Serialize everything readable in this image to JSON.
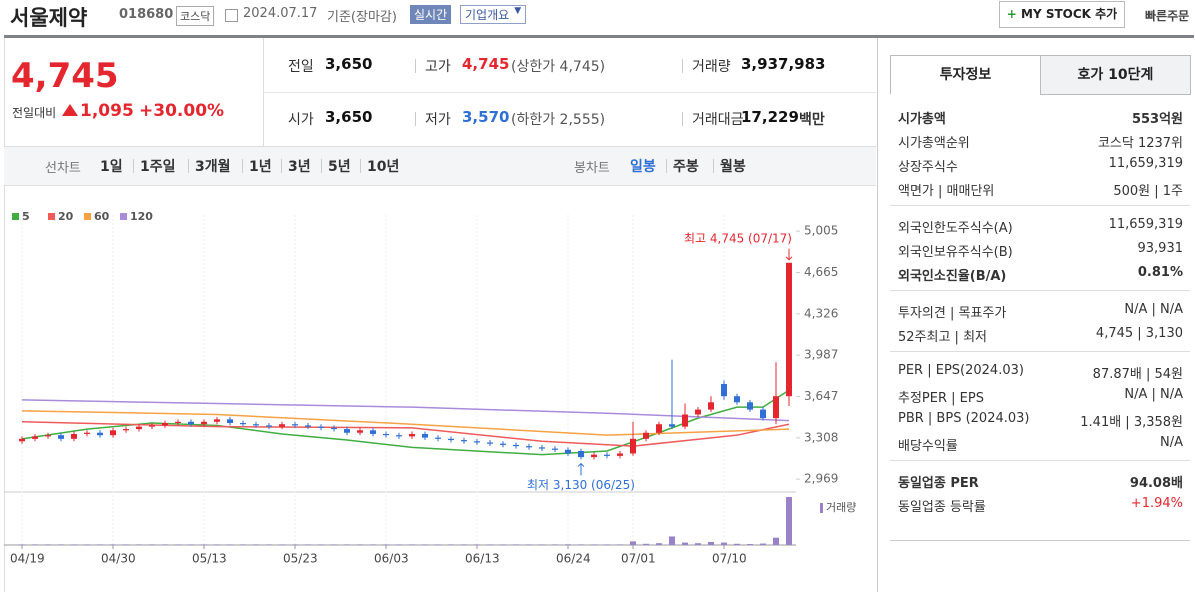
{
  "header": {
    "name": "서울제약",
    "code": "018680",
    "market": "코스닥",
    "date": "2024.07.17",
    "basis": "기준(장마감)",
    "realtime": "실시간",
    "company_info": "기업개요",
    "my_stock": "MY STOCK 추가",
    "quick_order": "빠른주문"
  },
  "price": {
    "current": "4,745",
    "change_label": "전일대비",
    "change": "1,095",
    "rate": "+30.00%"
  },
  "summary": [
    [
      {
        "label": "전일",
        "value": "3,650"
      },
      {
        "label": "고가",
        "value": "4,745",
        "note": "(상한가 4,745)"
      },
      {
        "label": "거래량",
        "value": "3,937,983"
      }
    ],
    [
      {
        "label": "시가",
        "value": "3,650"
      },
      {
        "label": "저가",
        "value": "3,570",
        "note": "(하한가 2,555)"
      },
      {
        "label": "거래대금",
        "value": "17,229",
        "unit": "백만"
      }
    ]
  ],
  "periods": {
    "line_label": "선차트",
    "line_items": [
      "1일",
      "1주일",
      "3개월",
      "1년",
      "3년",
      "5년",
      "10년"
    ],
    "candle_label": "봉차트",
    "candle_items": [
      "일봉",
      "주봉",
      "월봉"
    ]
  },
  "chart_data": {
    "type": "candlestick",
    "categories": [
      "04/19",
      null,
      null,
      null,
      null,
      null,
      null,
      "04/30",
      null,
      null,
      null,
      null,
      null,
      null,
      "05/13",
      null,
      null,
      null,
      null,
      null,
      null,
      "05/23",
      null,
      null,
      null,
      null,
      null,
      null,
      "06/03",
      null,
      null,
      null,
      null,
      null,
      null,
      "06/13",
      null,
      null,
      null,
      null,
      null,
      null,
      "06/24",
      null,
      null,
      null,
      null,
      "07/01",
      null,
      null,
      null,
      null,
      null,
      null,
      "07/10",
      null,
      null,
      null,
      null,
      null
    ],
    "open": [
      3280,
      3300,
      3320,
      3330,
      3300,
      3340,
      3350,
      3330,
      3370,
      3380,
      3400,
      3410,
      3430,
      3440,
      3420,
      3440,
      3460,
      3430,
      3420,
      3410,
      3400,
      3420,
      3410,
      3400,
      3390,
      3380,
      3350,
      3370,
      3340,
      3330,
      3320,
      3340,
      3310,
      3300,
      3290,
      3280,
      3270,
      3260,
      3250,
      3240,
      3230,
      3220,
      3210,
      3200,
      3150,
      3170,
      3160,
      3180,
      3300,
      3350,
      3420,
      3400,
      3500,
      3540,
      3750,
      3650,
      3600,
      3540,
      3470,
      3650
    ],
    "high": [
      3320,
      3340,
      3350,
      3350,
      3360,
      3370,
      3370,
      3390,
      3400,
      3420,
      3430,
      3450,
      3460,
      3460,
      3460,
      3480,
      3480,
      3450,
      3440,
      3430,
      3440,
      3440,
      3430,
      3420,
      3410,
      3400,
      3390,
      3390,
      3360,
      3350,
      3360,
      3360,
      3330,
      3320,
      3310,
      3300,
      3290,
      3280,
      3270,
      3260,
      3250,
      3240,
      3230,
      3220,
      3190,
      3190,
      3200,
      3440,
      3370,
      3440,
      3950,
      3590,
      3560,
      3650,
      3780,
      3670,
      3620,
      3560,
      3930,
      4745
    ],
    "low": [
      3260,
      3280,
      3300,
      3280,
      3280,
      3320,
      3310,
      3310,
      3350,
      3360,
      3380,
      3390,
      3410,
      3400,
      3400,
      3420,
      3410,
      3400,
      3390,
      3380,
      3380,
      3390,
      3380,
      3370,
      3360,
      3330,
      3330,
      3320,
      3310,
      3300,
      3300,
      3290,
      3280,
      3270,
      3260,
      3250,
      3240,
      3230,
      3220,
      3210,
      3200,
      3190,
      3160,
      3130,
      3130,
      3140,
      3140,
      3160,
      3280,
      3330,
      3380,
      3380,
      3480,
      3520,
      3620,
      3580,
      3520,
      3450,
      3420,
      3570
    ],
    "close": [
      3300,
      3320,
      3330,
      3300,
      3340,
      3350,
      3330,
      3370,
      3380,
      3400,
      3410,
      3430,
      3440,
      3420,
      3440,
      3460,
      3430,
      3420,
      3410,
      3400,
      3420,
      3410,
      3400,
      3390,
      3380,
      3350,
      3370,
      3340,
      3330,
      3320,
      3340,
      3310,
      3300,
      3290,
      3280,
      3270,
      3260,
      3250,
      3240,
      3230,
      3220,
      3210,
      3180,
      3150,
      3170,
      3160,
      3180,
      3300,
      3350,
      3420,
      3400,
      3500,
      3540,
      3600,
      3650,
      3600,
      3540,
      3470,
      3650,
      4745
    ],
    "volume": [
      50000,
      50000,
      50000,
      50000,
      50000,
      50000,
      50000,
      50000,
      50000,
      50000,
      50000,
      50000,
      50000,
      50000,
      50000,
      50000,
      50000,
      50000,
      50000,
      50000,
      50000,
      50000,
      50000,
      50000,
      50000,
      50000,
      50000,
      50000,
      50000,
      50000,
      50000,
      50000,
      50000,
      50000,
      50000,
      50000,
      50000,
      50000,
      50000,
      50000,
      50000,
      50000,
      60000,
      50000,
      50000,
      50000,
      50000,
      300000,
      100000,
      150000,
      700000,
      200000,
      150000,
      250000,
      200000,
      100000,
      80000,
      120000,
      600000,
      3937983
    ],
    "up_color": "#e4272f",
    "down_color": "#2f6fd6",
    "volume_color": "#9a82c9",
    "volume_label": "거래량",
    "moving_averages": [
      {
        "name": "5",
        "color": "#3fae3f",
        "x": [
          0,
          5,
          10,
          15,
          20,
          25,
          30,
          40,
          45,
          49,
          52,
          55,
          57,
          59
        ],
        "values": [
          3300,
          3380,
          3430,
          3410,
          3340,
          3290,
          3230,
          3170,
          3200,
          3350,
          3470,
          3560,
          3560,
          3700
        ]
      },
      {
        "name": "20",
        "color": "#ef5b5b",
        "x": [
          0,
          15,
          30,
          40,
          47,
          55,
          59
        ],
        "values": [
          3440,
          3400,
          3390,
          3280,
          3240,
          3330,
          3420
        ]
      },
      {
        "name": "60",
        "color": "#f7a143",
        "x": [
          0,
          15,
          30,
          45,
          59
        ],
        "values": [
          3530,
          3500,
          3420,
          3330,
          3380
        ]
      },
      {
        "name": "120",
        "color": "#a98bdc",
        "x": [
          0,
          15,
          30,
          45,
          59
        ],
        "values": [
          3620,
          3590,
          3560,
          3510,
          3450
        ]
      }
    ],
    "ylim": [
      2880,
      5080
    ],
    "yticks": [
      {
        "value": 2969,
        "label": "2,969"
      },
      {
        "value": 3308,
        "label": "3,308"
      },
      {
        "value": 3647,
        "label": "3,647"
      },
      {
        "value": 3987,
        "label": "3,987"
      },
      {
        "value": 4326,
        "label": "4,326"
      },
      {
        "value": 4665,
        "label": "4,665"
      },
      {
        "value": 5005,
        "label": "5,005"
      }
    ],
    "max_label": "최고 4,745 (07/17)",
    "min_label": "최저 3,130 (06/25)",
    "max_index": 59,
    "max_value": 4745,
    "min_index": 43,
    "min_value": 3130
  },
  "info": {
    "tabs": [
      "투자정보",
      "호가 10단계"
    ],
    "sections": [
      [
        {
          "label": "시가총액",
          "value": "553억원"
        },
        {
          "label": "시가총액순위",
          "value": "코스닥 1237위"
        },
        {
          "label": "상장주식수",
          "value": "11,659,319"
        },
        {
          "label": "액면가 | 매매단위",
          "value": "500원 | 1주"
        }
      ],
      [
        {
          "label": "외국인한도주식수(A)",
          "value": "11,659,319"
        },
        {
          "label": "외국인보유주식수(B)",
          "value": "93,931"
        },
        {
          "label": "외국인소진율(B/A)",
          "value": "0.81%"
        }
      ],
      [
        {
          "label": "투자의견 | 목표주가",
          "value": "N/A | N/A"
        },
        {
          "label": "52주최고 | 최저",
          "value": "4,745 | 3,130"
        }
      ],
      [
        {
          "label": "PER | EPS(2024.03)",
          "value": "87.87배 | 54원"
        },
        {
          "label": "추정PER | EPS",
          "value": "N/A | N/A"
        },
        {
          "label": "PBR | BPS (2024.03)",
          "value": "1.41배 | 3,358원"
        },
        {
          "label": "배당수익률",
          "value": "N/A"
        }
      ],
      [
        {
          "label": "동일업종 PER",
          "value": "94.08배"
        },
        {
          "label": "동일업종 등락률",
          "value": "+1.94%"
        }
      ]
    ]
  }
}
